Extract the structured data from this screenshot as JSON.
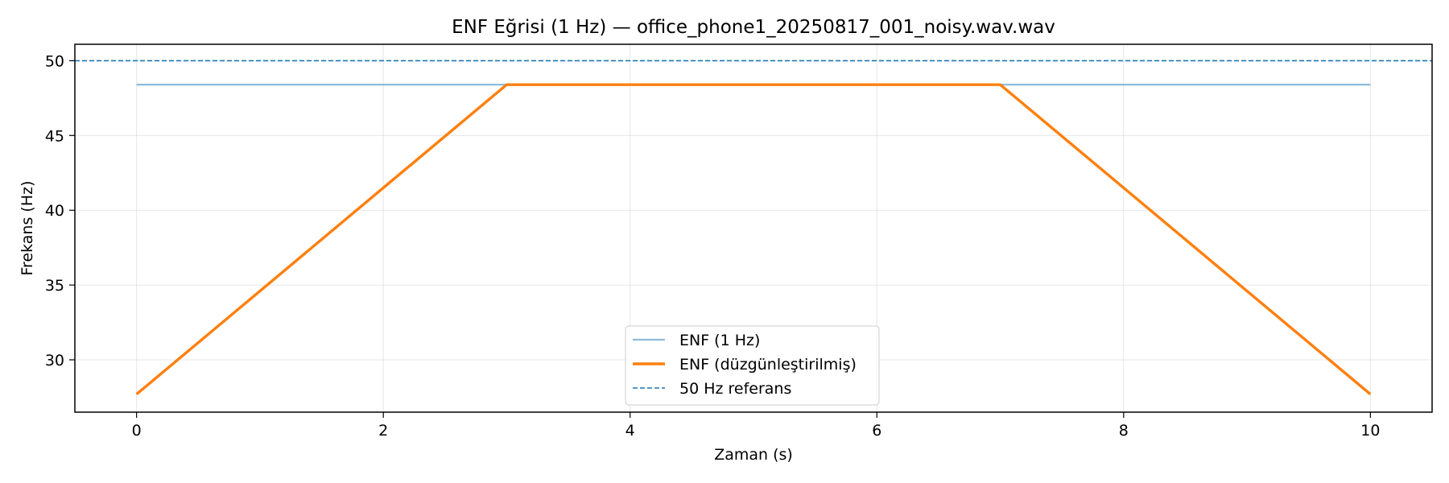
{
  "chart_data": {
    "type": "line",
    "title": "ENF Eğrisi (1 Hz) — office_phone1_20250817_001_noisy.wav.wav",
    "xlabel": "Zaman (s)",
    "ylabel": "Frekans (Hz)",
    "xlim": [
      -0.5,
      10.5
    ],
    "ylim": [
      26.5,
      51.1
    ],
    "xticks": [
      0,
      2,
      4,
      6,
      8,
      10
    ],
    "xtick_labels": [
      "0",
      "2",
      "4",
      "6",
      "8",
      "10"
    ],
    "yticks": [
      30,
      35,
      40,
      45,
      50
    ],
    "ytick_labels": [
      "30",
      "35",
      "40",
      "45",
      "50"
    ],
    "grid": true,
    "legend_position": "bottom-center",
    "series": [
      {
        "name": "ENF (1 Hz)",
        "color": "#1f77b4",
        "opacity": 0.5,
        "style": "solid",
        "x": [
          0,
          1,
          2,
          3,
          4,
          5,
          6,
          7,
          8,
          9,
          10
        ],
        "y": [
          48.4,
          48.4,
          48.4,
          48.4,
          48.4,
          48.4,
          48.4,
          48.4,
          48.4,
          48.4,
          48.4
        ]
      },
      {
        "name": "ENF (düzgünleştirilmiş)",
        "color": "#ff7f0e",
        "opacity": 1,
        "style": "solid",
        "x": [
          0,
          1,
          2,
          3,
          4,
          5,
          6,
          7,
          8,
          9,
          10
        ],
        "y": [
          27.7,
          34.6,
          41.5,
          48.4,
          48.4,
          48.4,
          48.4,
          48.4,
          41.5,
          34.6,
          27.7
        ]
      }
    ],
    "reference_line": {
      "name": "50 Hz referans",
      "y": 50,
      "color": "#1f77b4",
      "style": "dashed"
    }
  }
}
